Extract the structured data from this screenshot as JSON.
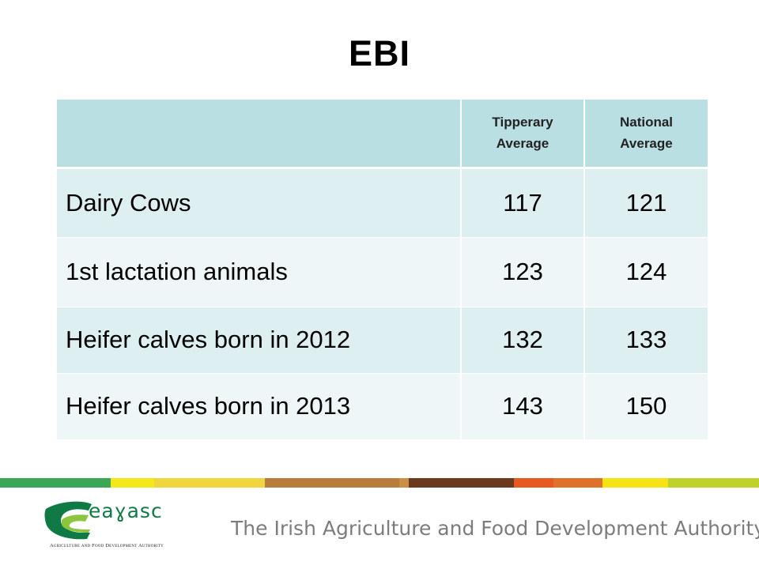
{
  "title": "EBI",
  "table": {
    "headers": [
      "",
      "Tipperary Average",
      "National Average"
    ],
    "header_lines": {
      "tipperary": [
        "Tipperary",
        "Average"
      ],
      "national": [
        "National",
        "Average"
      ]
    },
    "rows": [
      {
        "label": "Dairy Cows",
        "tipperary": "117",
        "national": "121"
      },
      {
        "label": "1st lactation animals",
        "tipperary": "123",
        "national": "124"
      },
      {
        "label": "Heifer calves born in 2012",
        "tipperary": "132",
        "national": "133"
      },
      {
        "label": "Heifer calves born in 2013",
        "tipperary": "143",
        "national": "150"
      }
    ]
  },
  "stripe_colors": [
    "#3aa757",
    "#f3e81a",
    "#f1d53c",
    "#b87d3d",
    "#c98f45",
    "#6b3a1e",
    "#e65a22",
    "#e0712a",
    "#f6e313",
    "#bdd22b"
  ],
  "footer": {
    "logo_word": "eaɣasc",
    "logo_tagline": "Agriculture and Food Development Authority",
    "authority_text": "The Irish Agriculture and Food Development Authority",
    "logo_colors": {
      "green": "#0f7a45",
      "light_green": "#8cc63f"
    }
  }
}
